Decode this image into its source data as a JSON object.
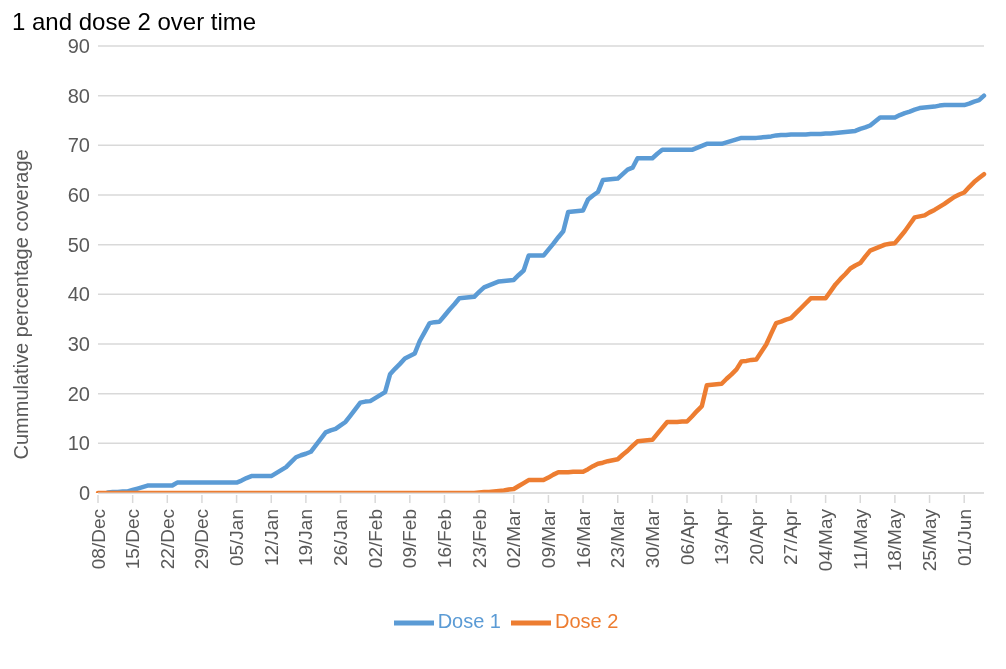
{
  "chart_data": {
    "type": "line",
    "title": "1 and dose 2 over time",
    "ylabel": "Cummulative percentage coverage",
    "categories": [
      "08/Dec",
      null,
      null,
      null,
      null,
      null,
      null,
      "15/Dec",
      null,
      null,
      null,
      null,
      null,
      null,
      "22/Dec",
      null,
      null,
      null,
      null,
      null,
      null,
      "29/Dec",
      null,
      null,
      null,
      null,
      null,
      null,
      "05/Jan",
      null,
      null,
      null,
      null,
      null,
      null,
      "12/Jan",
      null,
      null,
      null,
      null,
      null,
      null,
      "19/Jan",
      null,
      null,
      null,
      null,
      null,
      null,
      "26/Jan",
      null,
      null,
      null,
      null,
      null,
      null,
      "02/Feb",
      null,
      null,
      null,
      null,
      null,
      null,
      "09/Feb",
      null,
      null,
      null,
      null,
      null,
      null,
      "16/Feb",
      null,
      null,
      null,
      null,
      null,
      null,
      "23/Feb",
      null,
      null,
      null,
      null,
      null,
      null,
      "02/Mar",
      null,
      null,
      null,
      null,
      null,
      null,
      "09/Mar",
      null,
      null,
      null,
      null,
      null,
      null,
      "16/Mar",
      null,
      null,
      null,
      null,
      null,
      null,
      "23/Mar",
      null,
      null,
      null,
      null,
      null,
      null,
      "30/Mar",
      null,
      null,
      null,
      null,
      null,
      null,
      "06/Apr",
      null,
      null,
      null,
      null,
      null,
      null,
      "13/Apr",
      null,
      null,
      null,
      null,
      null,
      null,
      "20/Apr",
      null,
      null,
      null,
      null,
      null,
      null,
      "27/Apr",
      null,
      null,
      null,
      null,
      null,
      null,
      "04/May",
      null,
      null,
      null,
      null,
      null,
      null,
      "11/May",
      null,
      null,
      null,
      null,
      null,
      null,
      "18/May",
      null,
      null,
      null,
      null,
      null,
      null,
      "25/May",
      null,
      null,
      null,
      null,
      null,
      null,
      "01/Jun",
      null,
      null,
      null,
      null
    ],
    "ylim": [
      0,
      90
    ],
    "yticks": [
      0,
      10,
      20,
      30,
      40,
      50,
      60,
      70,
      80,
      90
    ],
    "grid": "y",
    "legend": "bottom",
    "marker": "none",
    "line_style": "solid",
    "series": [
      {
        "name": "Dose 1",
        "color": "#5b9bd5",
        "values": [
          null,
          null,
          0.1,
          0.2,
          0.2,
          0.3,
          0.3,
          0.6,
          0.9,
          1.2,
          1.5,
          1.5,
          1.5,
          1.5,
          1.5,
          1.5,
          2.1,
          2.1,
          2.1,
          2.1,
          2.1,
          2.1,
          2.1,
          2.1,
          2.1,
          2.1,
          2.1,
          2.1,
          2.1,
          2.5,
          3.0,
          3.4,
          3.4,
          3.4,
          3.4,
          3.4,
          4.0,
          4.6,
          5.2,
          6.2,
          7.2,
          7.6,
          7.9,
          8.3,
          9.6,
          10.9,
          12.2,
          12.6,
          12.9,
          13.6,
          14.3,
          15.6,
          16.9,
          18.2,
          18.4,
          18.5,
          19.1,
          19.7,
          20.3,
          23.9,
          25.0,
          26.0,
          27.1,
          27.6,
          28.1,
          30.6,
          32.4,
          34.2,
          34.4,
          34.5,
          35.7,
          36.9,
          38.0,
          39.2,
          39.3,
          39.4,
          39.5,
          40.5,
          41.4,
          41.8,
          42.2,
          42.6,
          42.7,
          42.8,
          42.9,
          43.9,
          44.8,
          47.8,
          47.8,
          47.8,
          47.8,
          49.0,
          50.2,
          51.5,
          52.7,
          56.6,
          56.7,
          56.8,
          56.9,
          59.1,
          59.9,
          60.6,
          63.0,
          63.1,
          63.2,
          63.3,
          64.2,
          65.1,
          65.5,
          67.4,
          67.4,
          67.4,
          67.4,
          68.3,
          69.1,
          69.1,
          69.1,
          69.1,
          69.1,
          69.1,
          69.1,
          69.5,
          69.9,
          70.3,
          70.3,
          70.3,
          70.3,
          70.6,
          70.9,
          71.2,
          71.5,
          71.5,
          71.5,
          71.5,
          71.6,
          71.7,
          71.8,
          72.0,
          72.1,
          72.1,
          72.2,
          72.2,
          72.2,
          72.2,
          72.3,
          72.3,
          72.3,
          72.4,
          72.4,
          72.5,
          72.6,
          72.7,
          72.8,
          72.9,
          73.3,
          73.6,
          74.0,
          74.8,
          75.6,
          75.6,
          75.6,
          75.6,
          76.1,
          76.5,
          76.8,
          77.2,
          77.5,
          77.6,
          77.7,
          77.8,
          78.0,
          78.1,
          78.1,
          78.1,
          78.1,
          78.1,
          78.4,
          78.8,
          79.1,
          80.0
        ]
      },
      {
        "name": "Dose 2",
        "color": "#ed7d31",
        "values": [
          0,
          0,
          0,
          0,
          0,
          0,
          0,
          0,
          0,
          0,
          0,
          0,
          0,
          0,
          0,
          0,
          0,
          0,
          0,
          0,
          0,
          0,
          0,
          0,
          0,
          0,
          0,
          0,
          0,
          0,
          0,
          0,
          0,
          0,
          0,
          0,
          0,
          0,
          0,
          0,
          0,
          0,
          0,
          0,
          0,
          0,
          0,
          0,
          0,
          0,
          0,
          0,
          0,
          0,
          0,
          0,
          0,
          0,
          0,
          0,
          0,
          0,
          0,
          0,
          0,
          0,
          0,
          0,
          0,
          0,
          0,
          0,
          0,
          0,
          0,
          0,
          0,
          0.1,
          0.2,
          0.2,
          0.3,
          0.4,
          0.5,
          0.7,
          0.8,
          1.4,
          2.0,
          2.6,
          2.6,
          2.6,
          2.6,
          3.1,
          3.7,
          4.2,
          4.2,
          4.2,
          4.3,
          4.3,
          4.3,
          4.8,
          5.4,
          5.9,
          6.1,
          6.4,
          6.6,
          6.8,
          7.7,
          8.5,
          9.5,
          10.4,
          10.5,
          10.6,
          10.7,
          11.9,
          13.1,
          14.3,
          14.3,
          14.3,
          14.4,
          14.4,
          15.4,
          16.5,
          17.5,
          21.7,
          21.8,
          21.9,
          22.0,
          23.0,
          23.9,
          24.9,
          26.5,
          26.6,
          26.8,
          26.9,
          28.4,
          29.9,
          32.1,
          34.2,
          34.5,
          34.9,
          35.2,
          36.2,
          37.2,
          38.2,
          39.2,
          39.2,
          39.2,
          39.2,
          40.6,
          42.0,
          43.1,
          44.1,
          45.2,
          45.8,
          46.3,
          47.6,
          48.8,
          49.2,
          49.6,
          50.0,
          50.2,
          50.3,
          51.5,
          52.7,
          54.1,
          55.5,
          55.7,
          55.9,
          56.5,
          57.0,
          57.6,
          58.2,
          58.9,
          59.6,
          60.1,
          60.5,
          61.6,
          62.6,
          63.4,
          64.2
        ]
      }
    ]
  }
}
